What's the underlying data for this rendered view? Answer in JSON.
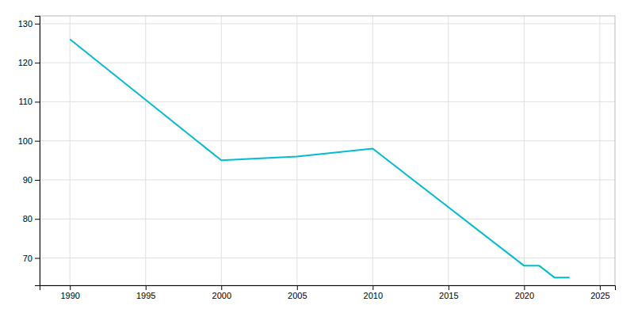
{
  "chart_data": {
    "type": "line",
    "x": [
      1990,
      2000,
      2005,
      2010,
      2020,
      2021,
      2022,
      2023
    ],
    "values": [
      126,
      95,
      96,
      98,
      68,
      68,
      65,
      65
    ],
    "color": "#00bcd4",
    "xlim": [
      1988,
      2026
    ],
    "ylim": [
      63,
      132
    ],
    "xticks": [
      1990,
      1995,
      2000,
      2005,
      2010,
      2015,
      2020,
      2025
    ],
    "yticks": [
      70,
      80,
      90,
      100,
      110,
      120,
      130
    ],
    "grid": true
  }
}
